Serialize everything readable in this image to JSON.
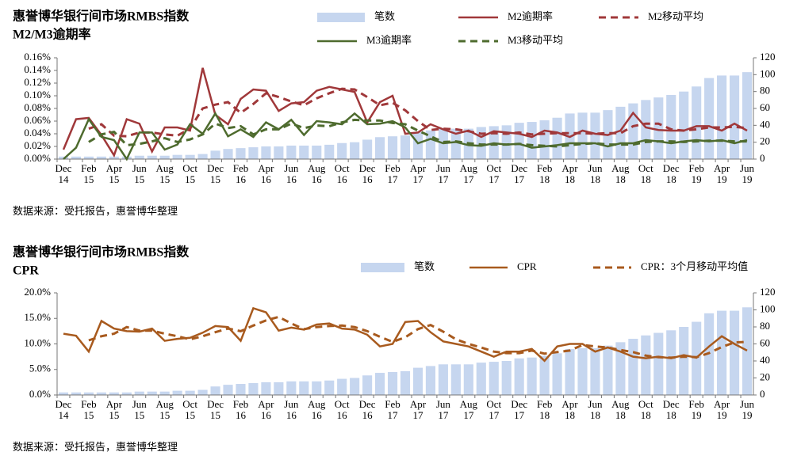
{
  "chart_data": [
    {
      "type": "bar-line",
      "title": "惠誉博华银行间市场RMBS指数",
      "subtitle": "M2/M3逾期率",
      "note": "数据来源：受托报告，惠誉博华整理",
      "categories": [
        "Dec 14",
        null,
        "Feb 15",
        null,
        "Apr 15",
        null,
        "Jun 15",
        null,
        "Aug 15",
        null,
        "Oct 15",
        null,
        "Dec 15",
        null,
        "Feb 16",
        null,
        "Apr 16",
        null,
        "Jun 16",
        null,
        "Aug 16",
        null,
        "Oct 16",
        null,
        "Dec 16",
        null,
        "Feb 17",
        null,
        "Apr 17",
        null,
        "Jun 17",
        null,
        "Aug 17",
        null,
        "Oct 17",
        null,
        "Dec 17",
        null,
        "Feb 18",
        null,
        "Apr 18",
        null,
        "Jun 18",
        null,
        "Aug 18",
        null,
        "Oct 18",
        null,
        "Dec 18",
        null,
        "Feb 19",
        null,
        "Apr 19",
        null,
        "Jun 19"
      ],
      "ylim": [
        0,
        0.16
      ],
      "yticks": [
        {
          "value": 0,
          "label": "0.00%"
        },
        {
          "value": 0.02,
          "label": "0.02%"
        },
        {
          "value": 0.04,
          "label": "0.04%"
        },
        {
          "value": 0.06,
          "label": "0.06%"
        },
        {
          "value": 0.08,
          "label": "0.08%"
        },
        {
          "value": 0.1,
          "label": "0.10%"
        },
        {
          "value": 0.12,
          "label": "0.12%"
        },
        {
          "value": 0.14,
          "label": "0.14%"
        },
        {
          "value": 0.16,
          "label": "0.16%"
        }
      ],
      "y2lim": [
        0,
        120
      ],
      "y2ticks": [
        0,
        20,
        40,
        60,
        80,
        100,
        120
      ],
      "grid": false,
      "series": [
        {
          "name": "笔数",
          "type": "bar",
          "axis": "y2",
          "color": "#c6d6ef",
          "values": [
            3,
            3,
            3,
            3,
            3,
            3,
            4,
            4,
            4,
            5,
            5,
            6,
            10,
            12,
            13,
            14,
            15,
            15,
            16,
            16,
            16,
            17,
            19,
            20,
            23,
            26,
            27,
            28,
            32,
            34,
            36,
            36,
            36,
            38,
            39,
            40,
            43,
            44,
            46,
            49,
            54,
            55,
            55,
            58,
            62,
            66,
            70,
            73,
            76,
            80,
            86,
            96,
            99,
            99,
            103
          ]
        },
        {
          "name": "M2逾期率",
          "type": "line",
          "dash": false,
          "color": "#a0383a",
          "values": [
            0.015,
            0.063,
            0.065,
            0.038,
            0.006,
            0.063,
            0.056,
            0.012,
            0.05,
            0.05,
            0.045,
            0.144,
            0.07,
            0.055,
            0.095,
            0.11,
            0.108,
            0.076,
            0.088,
            0.09,
            0.108,
            0.114,
            0.11,
            0.106,
            0.058,
            0.09,
            0.1,
            0.04,
            0.042,
            0.055,
            0.047,
            0.04,
            0.045,
            0.035,
            0.044,
            0.042,
            0.04,
            0.035,
            0.045,
            0.042,
            0.035,
            0.045,
            0.04,
            0.038,
            0.045,
            0.073,
            0.05,
            0.046,
            0.045,
            0.045,
            0.052,
            0.052,
            0.045,
            0.056,
            0.045
          ]
        },
        {
          "name": "M2移动平均",
          "type": "line",
          "dash": true,
          "color": "#a0383a",
          "values": [
            null,
            null,
            0.048,
            0.055,
            0.037,
            0.036,
            0.042,
            0.042,
            0.039,
            0.037,
            0.048,
            0.08,
            0.086,
            0.09,
            0.073,
            0.087,
            0.104,
            0.098,
            0.091,
            0.085,
            0.096,
            0.104,
            0.111,
            0.11,
            0.098,
            0.085,
            0.089,
            0.077,
            0.06,
            0.046,
            0.048,
            0.047,
            0.044,
            0.04,
            0.041,
            0.04,
            0.042,
            0.039,
            0.04,
            0.041,
            0.041,
            0.041,
            0.04,
            0.041,
            0.041,
            0.052,
            0.056,
            0.056,
            0.047,
            0.045,
            0.047,
            0.05,
            0.05,
            0.051,
            0.049
          ]
        },
        {
          "name": "M3逾期率",
          "type": "line",
          "dash": false,
          "color": "#4e6b2e",
          "values": [
            0,
            0.018,
            0.063,
            0.035,
            0.03,
            0,
            0.042,
            0.042,
            0.015,
            0.023,
            0.055,
            0.04,
            0.072,
            0.036,
            0.047,
            0.035,
            0.058,
            0.047,
            0.062,
            0.038,
            0.06,
            0.058,
            0.055,
            0.072,
            0.055,
            0.056,
            0.06,
            0.05,
            0.025,
            0.032,
            0.025,
            0.027,
            0.022,
            0.021,
            0.025,
            0.023,
            0.024,
            0.018,
            0.02,
            0.022,
            0.025,
            0.025,
            0.025,
            0.02,
            0.025,
            0.025,
            0.03,
            0.028,
            0.025,
            0.028,
            0.03,
            0.028,
            0.03,
            0.025,
            0.03
          ]
        },
        {
          "name": "M3移动平均",
          "type": "line",
          "dash": true,
          "color": "#4e6b2e",
          "values": [
            null,
            null,
            0.027,
            0.039,
            0.043,
            0.022,
            0.024,
            0.028,
            0.033,
            0.027,
            0.031,
            0.039,
            0.056,
            0.049,
            0.052,
            0.039,
            0.047,
            0.047,
            0.056,
            0.049,
            0.053,
            0.052,
            0.058,
            0.062,
            0.061,
            0.061,
            0.057,
            0.055,
            0.045,
            0.036,
            0.027,
            0.028,
            0.025,
            0.023,
            0.023,
            0.023,
            0.024,
            0.022,
            0.021,
            0.02,
            0.022,
            0.024,
            0.025,
            0.023,
            0.023,
            0.023,
            0.027,
            0.028,
            0.028,
            0.027,
            0.028,
            0.029,
            0.029,
            0.028,
            0.028
          ]
        }
      ]
    },
    {
      "type": "bar-line",
      "title": "惠誉博华银行间市场RMBS指数",
      "subtitle": "CPR",
      "note": "数据来源：受托报告，惠誉博华整理",
      "categories": [
        "Dec 14",
        null,
        "Feb 15",
        null,
        "Apr 15",
        null,
        "Jun 15",
        null,
        "Aug 15",
        null,
        "Oct 15",
        null,
        "Dec 15",
        null,
        "Feb 16",
        null,
        "Apr 16",
        null,
        "Jun 16",
        null,
        "Aug 16",
        null,
        "Oct 16",
        null,
        "Dec 16",
        null,
        "Feb 17",
        null,
        "Apr 17",
        null,
        "Jun 17",
        null,
        "Aug 17",
        null,
        "Oct 17",
        null,
        "Dec 17",
        null,
        "Feb 18",
        null,
        "Apr 18",
        null,
        "Jun 18",
        null,
        "Aug 18",
        null,
        "Oct 18",
        null,
        "Dec 18",
        null,
        "Feb 19",
        null,
        "Apr 19",
        null,
        "Jun 19"
      ],
      "ylim": [
        0,
        20
      ],
      "yticks": [
        {
          "value": 0,
          "label": "0.0%"
        },
        {
          "value": 5,
          "label": "5.0%"
        },
        {
          "value": 10,
          "label": "10.0%"
        },
        {
          "value": 15,
          "label": "15.0%"
        },
        {
          "value": 20,
          "label": "20.0%"
        }
      ],
      "y2lim": [
        0,
        120
      ],
      "y2ticks": [
        0,
        20,
        40,
        60,
        80,
        100,
        120
      ],
      "grid": false,
      "series": [
        {
          "name": "笔数",
          "type": "bar",
          "axis": "y2",
          "color": "#c6d6ef",
          "values": [
            3,
            3,
            3,
            3,
            3,
            3,
            4,
            4,
            4,
            5,
            5,
            6,
            10,
            12,
            13,
            14,
            15,
            15,
            16,
            16,
            16,
            17,
            19,
            20,
            23,
            26,
            27,
            28,
            32,
            34,
            36,
            36,
            36,
            38,
            39,
            40,
            43,
            44,
            46,
            49,
            54,
            55,
            55,
            58,
            62,
            66,
            70,
            73,
            76,
            80,
            86,
            96,
            99,
            99,
            103
          ]
        },
        {
          "name": "CPR",
          "type": "line",
          "dash": false,
          "color": "#a85a1e",
          "values": [
            12,
            11.6,
            8.5,
            14.5,
            13,
            12.5,
            12.4,
            13,
            10.6,
            11,
            11.2,
            12.2,
            13.5,
            13.3,
            10.6,
            17,
            16.2,
            12.6,
            13.2,
            12.8,
            13.8,
            14,
            13,
            12.8,
            11.8,
            9.5,
            10,
            14.3,
            14.5,
            12.3,
            10.5,
            10,
            9.5,
            8.5,
            7.5,
            8.5,
            8.5,
            9,
            6.7,
            9.5,
            10,
            10,
            8.5,
            9.3,
            8.5,
            7.5,
            7.2,
            7.5,
            7.2,
            7.8,
            7.3,
            9.5,
            11.5,
            10,
            8.7
          ]
        },
        {
          "name": "CPR：3个月移动平均值",
          "type": "line",
          "dash": true,
          "color": "#a85a1e",
          "values": [
            null,
            null,
            10.7,
            11.5,
            12,
            13.3,
            12.6,
            12.6,
            12,
            11.5,
            10.9,
            11.5,
            12.3,
            13,
            12.5,
            13.6,
            14.6,
            15.3,
            14,
            12.9,
            13.3,
            13.5,
            13.6,
            13.3,
            12.5,
            11.4,
            10.4,
            11.3,
            12.9,
            13.7,
            12.4,
            10.9,
            10,
            9.3,
            8.5,
            8.2,
            8.2,
            8.7,
            8.1,
            8.4,
            8.7,
            9.8,
            9.5,
            9.3,
            8.8,
            8.4,
            7.7,
            7.4,
            7.3,
            7.5,
            7.4,
            8.2,
            9.4,
            10.3,
            10.4
          ]
        }
      ]
    }
  ]
}
